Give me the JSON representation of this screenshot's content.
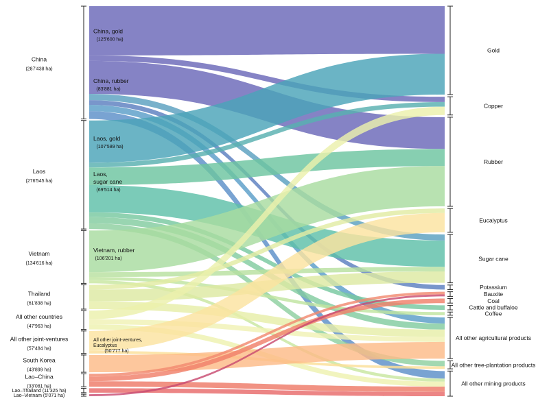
{
  "chart_data": {
    "type": "sankey",
    "title": "",
    "sources": [
      {
        "id": "china",
        "label": "China",
        "value_text": "(287'438 ha)",
        "value": 287438
      },
      {
        "id": "laos",
        "label": "Laos",
        "value_text": "(276'545 ha)",
        "value": 276545
      },
      {
        "id": "vietnam",
        "label": "Vietnam",
        "value_text": "(134'616 ha)",
        "value": 134616
      },
      {
        "id": "thailand",
        "label": "Thailand",
        "value_text": "(61'838 ha)",
        "value": 61838
      },
      {
        "id": "other_countries",
        "label": "All other countries",
        "value_text": "(47'963 ha)",
        "value": 47963
      },
      {
        "id": "other_jv",
        "label": "All other joint-ventures",
        "value_text": "(57'484 ha)",
        "value": 57484
      },
      {
        "id": "south_korea",
        "label": "South Korea",
        "value_text": "(43'899 ha)",
        "value": 43899
      },
      {
        "id": "lao_china",
        "label": "Lao–China",
        "value_text": "(33'081 ha)",
        "value": 33081
      },
      {
        "id": "lao_thailand",
        "label": "Lao–Thailand (11'325 ha)",
        "value_text": "",
        "value": 11325
      },
      {
        "id": "lao_vietnam",
        "label": "Lao–Vietnam (5'071 ha)",
        "value_text": "",
        "value": 5071
      }
    ],
    "sub_labels": [
      {
        "source": "china",
        "label": "China, gold",
        "value_text": "(125'600 ha)",
        "value": 125600
      },
      {
        "source": "china",
        "label": "China, rubber",
        "value_text": "(83'881 ha)",
        "value": 83881
      },
      {
        "source": "laos",
        "label": "Laos, gold",
        "value_text": "(107'589 ha)",
        "value": 107589
      },
      {
        "source": "laos",
        "label": "Laos,\nsugar cane",
        "value_text": "(69'514 ha)",
        "value": 69514
      },
      {
        "source": "vietnam",
        "label": "Vietnam, rubber",
        "value_text": "(106'201 ha)",
        "value": 106201
      },
      {
        "source": "other_jv",
        "label": "All other joint-ventures,\nEucalyptus",
        "value_text": "(50'777 ha)",
        "value": 50777
      }
    ],
    "targets": [
      {
        "id": "gold",
        "label": "Gold"
      },
      {
        "id": "copper",
        "label": "Copper"
      },
      {
        "id": "rubber",
        "label": "Rubber"
      },
      {
        "id": "eucalyptus",
        "label": "Eucalyptus"
      },
      {
        "id": "sugar_cane",
        "label": "Sugar cane"
      },
      {
        "id": "potassium",
        "label": "Potassium"
      },
      {
        "id": "bauxite",
        "label": "Bauxite"
      },
      {
        "id": "coal",
        "label": "Coal"
      },
      {
        "id": "cattle",
        "label": "Cattle and buffaloe"
      },
      {
        "id": "coffee",
        "label": "Coffee"
      },
      {
        "id": "other_agri",
        "label": "All other agricultural products"
      },
      {
        "id": "other_tree",
        "label": "All other tree-plantation products"
      },
      {
        "id": "other_mining",
        "label": "All other mining products"
      }
    ],
    "flows": [
      {
        "source": "china",
        "target": "gold",
        "value": 125600,
        "color": "#6a68b8"
      },
      {
        "source": "china",
        "target": "rubber",
        "value": 83881,
        "color": "#6a68b8"
      },
      {
        "source": "china",
        "target": "copper",
        "value": 14000,
        "color": "#6a68b8"
      },
      {
        "source": "china",
        "target": "potassium",
        "value": 12000,
        "color": "#5b7fc0"
      },
      {
        "source": "china",
        "target": "other_mining",
        "value": 20000,
        "color": "#5b8fc8"
      },
      {
        "source": "china",
        "target": "other_agri",
        "value": 16000,
        "color": "#5a9ec8"
      },
      {
        "source": "china",
        "target": "sugar_cane",
        "value": 15957,
        "color": "#5aa0c0"
      },
      {
        "source": "laos",
        "target": "gold",
        "value": 107589,
        "color": "#4aa3b8"
      },
      {
        "source": "laos",
        "target": "sugar_cane",
        "value": 69514,
        "color": "#5ec0a8"
      },
      {
        "source": "laos",
        "target": "rubber",
        "value": 45000,
        "color": "#6cc4a0"
      },
      {
        "source": "laos",
        "target": "copper",
        "value": 12000,
        "color": "#58b0b0"
      },
      {
        "source": "laos",
        "target": "cattle",
        "value": 12000,
        "color": "#78c8a0"
      },
      {
        "source": "laos",
        "target": "other_agri",
        "value": 16000,
        "color": "#82cca0"
      },
      {
        "source": "laos",
        "target": "other_tree",
        "value": 14442,
        "color": "#8ed0a0"
      },
      {
        "source": "vietnam",
        "target": "rubber",
        "value": 106201,
        "color": "#a8dca0"
      },
      {
        "source": "vietnam",
        "target": "sugar_cane",
        "value": 12000,
        "color": "#b8e0a0"
      },
      {
        "source": "vietnam",
        "target": "coffee",
        "value": 8415,
        "color": "#c0e4a0"
      },
      {
        "source": "vietnam",
        "target": "other_mining",
        "value": 8000,
        "color": "#c8e6a0"
      },
      {
        "source": "thailand",
        "target": "sugar_cane",
        "value": 30000,
        "color": "#dde9a2"
      },
      {
        "source": "thailand",
        "target": "eucalyptus",
        "value": 12000,
        "color": "#e2eca4"
      },
      {
        "source": "thailand",
        "target": "other_agri",
        "value": 19838,
        "color": "#e6eea8"
      },
      {
        "source": "other_countries",
        "target": "copper",
        "value": 22000,
        "color": "#ecf0ac"
      },
      {
        "source": "other_countries",
        "target": "other_mining",
        "value": 13000,
        "color": "#eef2b0"
      },
      {
        "source": "other_countries",
        "target": "other_agri",
        "value": 12963,
        "color": "#f0f2b4"
      },
      {
        "source": "other_jv",
        "target": "eucalyptus",
        "value": 50777,
        "color": "#fbe3a0"
      },
      {
        "source": "other_jv",
        "target": "other_tree",
        "value": 6707,
        "color": "#fbdf98"
      },
      {
        "source": "south_korea",
        "target": "other_agri",
        "value": 43899,
        "color": "#fdbb88"
      },
      {
        "source": "lao_china",
        "target": "coal",
        "value": 12000,
        "color": "#f0806a"
      },
      {
        "source": "lao_china",
        "target": "other_mining",
        "value": 14000,
        "color": "#ee7a68"
      },
      {
        "source": "lao_china",
        "target": "bauxite",
        "value": 7081,
        "color": "#f28a70"
      },
      {
        "source": "lao_thailand",
        "target": "other_mining",
        "value": 11325,
        "color": "#e86a6a"
      },
      {
        "source": "lao_vietnam",
        "target": "bauxite",
        "value": 5071,
        "color": "#c84a70"
      }
    ],
    "colors": {
      "china": "#6a68b8",
      "laos": "#4aa3b8",
      "vietnam": "#a8dca0",
      "south_korea": "#fdbb88",
      "lao_china": "#f0806a"
    }
  }
}
